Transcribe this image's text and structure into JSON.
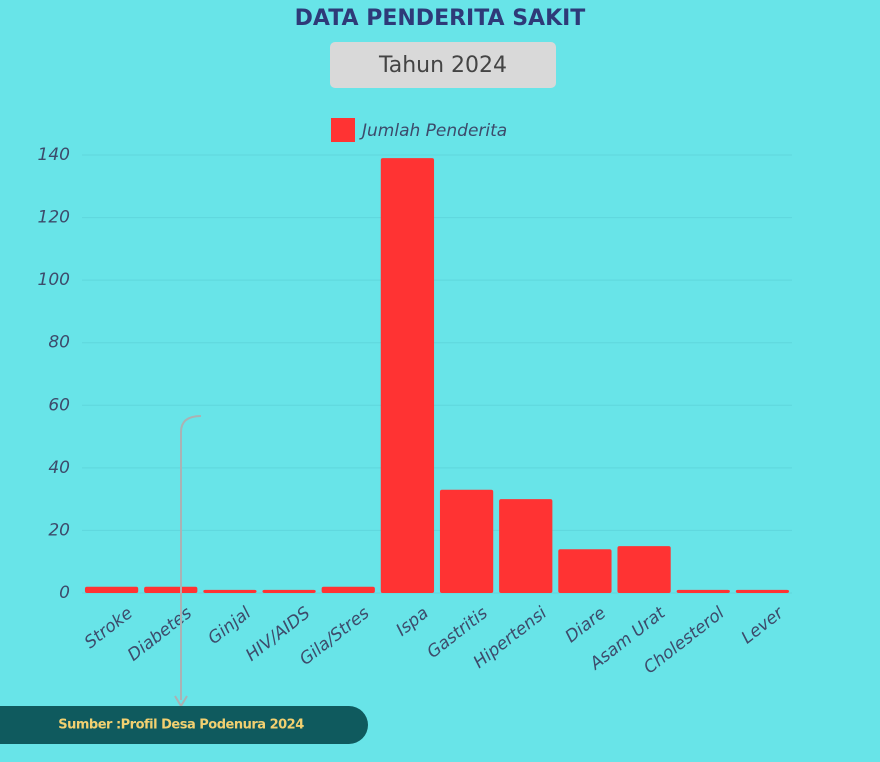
{
  "chart_data": {
    "type": "bar",
    "title": "DATA PENDERITA SAKIT",
    "subtitle": "Tahun 2024",
    "categories": [
      "Stroke",
      "Diabetes",
      "Ginjal",
      "HIV/AIDS",
      "Gila/Stres",
      "Ispa",
      "Gastritis",
      "Hipertensi",
      "Diare",
      "Asam Urat",
      "Cholesterol",
      "Lever"
    ],
    "series": [
      {
        "name": "Jumlah Penderita",
        "color": "#ff3333",
        "values": [
          2,
          2,
          1,
          1,
          2,
          139,
          33,
          30,
          14,
          15,
          1,
          1
        ]
      }
    ],
    "ylim": [
      0,
      140
    ],
    "yticks": [
      0,
      20,
      40,
      60,
      80,
      100,
      120,
      140
    ],
    "grid": true,
    "source": "Sumber :Profil Desa Podenura 2024"
  }
}
